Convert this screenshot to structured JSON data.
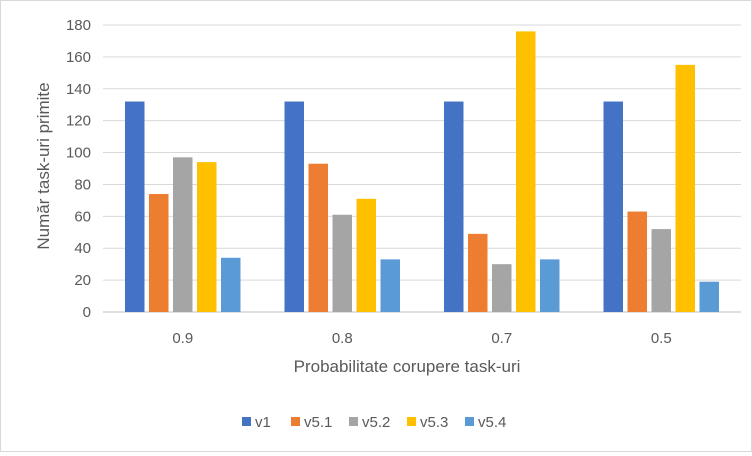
{
  "chart_data": {
    "type": "bar",
    "title": "",
    "xlabel": "Probabilitate corupere task-uri",
    "ylabel": "Număr task-uri primite",
    "ylim": [
      0,
      180
    ],
    "yticks": [
      "0",
      "20",
      "40",
      "60",
      "80",
      "100",
      "120",
      "140",
      "160",
      "180"
    ],
    "categories": [
      "0.9",
      "0.8",
      "0.7",
      "0.5"
    ],
    "grid": "horizontal",
    "legend_position": "bottom",
    "series": [
      {
        "name": "v1",
        "color": "#4472C4",
        "values": [
          132,
          132,
          132,
          132
        ]
      },
      {
        "name": "v5.1",
        "color": "#ED7D31",
        "values": [
          74,
          93,
          49,
          63
        ]
      },
      {
        "name": "v5.2",
        "color": "#A5A5A5",
        "values": [
          97,
          61,
          30,
          52
        ]
      },
      {
        "name": "v5.3",
        "color": "#FFC000",
        "values": [
          94,
          71,
          176,
          155
        ]
      },
      {
        "name": "v5.4",
        "color": "#5B9BD5",
        "values": [
          34,
          33,
          33,
          19
        ]
      }
    ]
  }
}
